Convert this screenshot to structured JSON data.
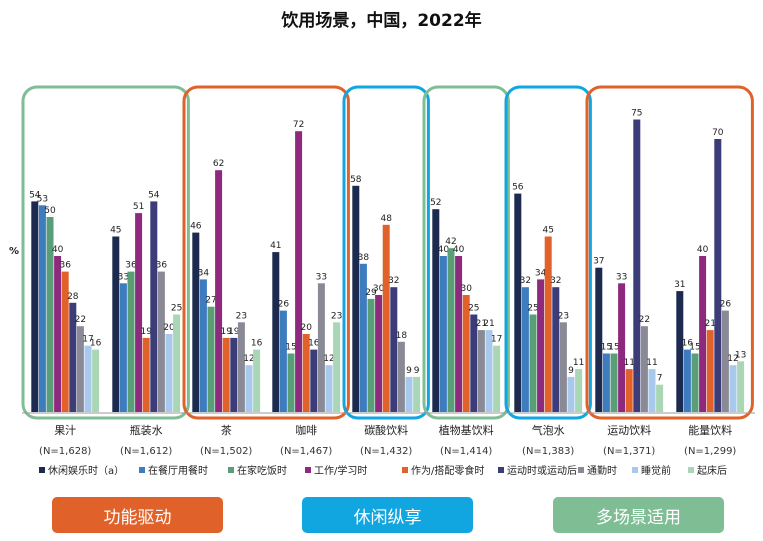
{
  "chart_data": {
    "type": "bar",
    "title": "饮用场景，中国，2022年",
    "ylabel": "%",
    "xlabel": "",
    "ylim": [
      0,
      80
    ],
    "categories": [
      "果汁",
      "瓶装水",
      "茶",
      "咖啡",
      "碳酸饮料",
      "植物基饮料",
      "气泡水",
      "运动饮料",
      "能量饮料"
    ],
    "sample_sizes": [
      "(N=1,628)",
      "(N=1,612)",
      "(N=1,502)",
      "(N=1,467)",
      "(N=1,432)",
      "(N=1,414)",
      "(N=1,383)",
      "(N=1,371)",
      "(N=1,299)"
    ],
    "series": [
      {
        "name": "休闲娱乐时（a）",
        "color": "#1b2a4e",
        "values": [
          54,
          45,
          46,
          41,
          58,
          52,
          56,
          37,
          31
        ]
      },
      {
        "name": "在餐厅用餐时",
        "color": "#3d7dbf",
        "values": [
          53,
          33,
          34,
          26,
          38,
          40,
          32,
          15,
          16
        ]
      },
      {
        "name": "在家吃饭时",
        "color": "#5a9e78",
        "values": [
          50,
          36,
          27,
          15,
          29,
          42,
          25,
          15,
          15
        ]
      },
      {
        "name": "工作/学习时",
        "color": "#8e2a7e",
        "values": [
          40,
          51,
          62,
          72,
          30,
          40,
          34,
          33,
          40
        ]
      },
      {
        "name": "作为/搭配零食时",
        "color": "#e0622a",
        "values": [
          36,
          19,
          19,
          20,
          48,
          30,
          45,
          11,
          21
        ]
      },
      {
        "name": "运动时或运动后",
        "color": "#3b3c78",
        "values": [
          28,
          54,
          19,
          16,
          32,
          25,
          32,
          75,
          70
        ]
      },
      {
        "name": "通勤时",
        "color": "#8a8a96",
        "values": [
          22,
          36,
          23,
          33,
          18,
          21,
          23,
          22,
          26
        ]
      },
      {
        "name": "睡觉前",
        "color": "#a8c8ec",
        "values": [
          17,
          20,
          12,
          12,
          9,
          21,
          9,
          11,
          12
        ]
      },
      {
        "name": "起床后",
        "color": "#a9d7b6",
        "values": [
          16,
          25,
          16,
          23,
          9,
          17,
          11,
          7,
          13
        ]
      }
    ],
    "groups": [
      {
        "label": "功能驱动",
        "color": "#e0622a",
        "members": [
          "瓶装水",
          "茶",
          "咖啡",
          "运动饮料",
          "能量饮料"
        ]
      },
      {
        "label": "休闲纵享",
        "color": "#12a6e0",
        "members": [
          "碳酸饮料",
          "气泡水"
        ]
      },
      {
        "label": "多场景适用",
        "color": "#7fbe94",
        "members": [
          "果汁",
          "植物基饮料"
        ]
      }
    ]
  }
}
